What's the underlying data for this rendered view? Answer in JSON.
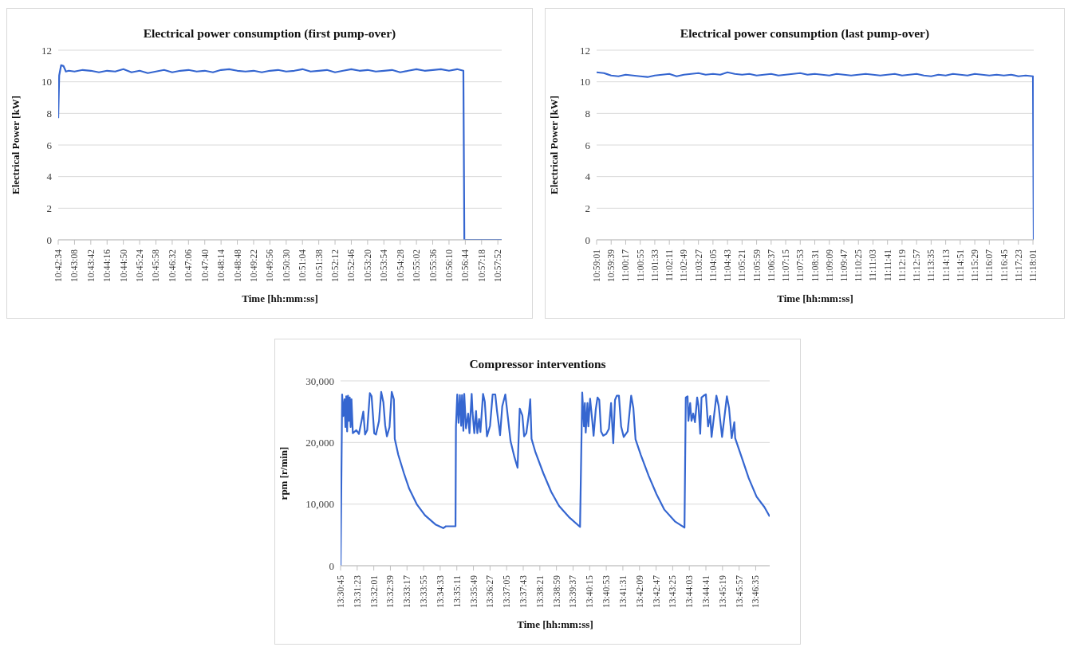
{
  "chart_data": [
    {
      "type": "line",
      "title": "Electrical power consumption (first pump-over)",
      "xlabel": "Time [hh:mm:ss]",
      "ylabel": "Electrical Power [kW]",
      "grid": "y",
      "ylim": [
        0,
        12
      ],
      "yticks": [
        0,
        2,
        4,
        6,
        8,
        10,
        12
      ],
      "xlim": [
        10.70944,
        10.96667
      ],
      "xticks": [
        {
          "value": 10.70944,
          "label": "10:42:34"
        },
        {
          "value": 10.71889,
          "label": "10:43:08"
        },
        {
          "value": 10.72833,
          "label": "10:43:42"
        },
        {
          "value": 10.73778,
          "label": "10:44:16"
        },
        {
          "value": 10.74722,
          "label": "10:44:50"
        },
        {
          "value": 10.75667,
          "label": "10:45:24"
        },
        {
          "value": 10.76611,
          "label": "10:45:58"
        },
        {
          "value": 10.77556,
          "label": "10:46:32"
        },
        {
          "value": 10.785,
          "label": "10:47:06"
        },
        {
          "value": 10.79444,
          "label": "10:47:40"
        },
        {
          "value": 10.80389,
          "label": "10:48:14"
        },
        {
          "value": 10.81333,
          "label": "10:48:48"
        },
        {
          "value": 10.82278,
          "label": "10:49:22"
        },
        {
          "value": 10.83222,
          "label": "10:49:56"
        },
        {
          "value": 10.84167,
          "label": "10:50:30"
        },
        {
          "value": 10.85111,
          "label": "10:51:04"
        },
        {
          "value": 10.86056,
          "label": "10:51:38"
        },
        {
          "value": 10.87,
          "label": "10:52:12"
        },
        {
          "value": 10.87944,
          "label": "10:52:46"
        },
        {
          "value": 10.88889,
          "label": "10:53:20"
        },
        {
          "value": 10.89833,
          "label": "10:53:54"
        },
        {
          "value": 10.90778,
          "label": "10:54:28"
        },
        {
          "value": 10.91722,
          "label": "10:55:02"
        },
        {
          "value": 10.92667,
          "label": "10:55:36"
        },
        {
          "value": 10.93611,
          "label": "10:56:10"
        },
        {
          "value": 10.94556,
          "label": "10:56:44"
        },
        {
          "value": 10.955,
          "label": "10:57:18"
        },
        {
          "value": 10.96444,
          "label": "10:57:52"
        }
      ],
      "x": [
        10.70944,
        10.71,
        10.71111,
        10.7125,
        10.71389,
        10.71556,
        10.71889,
        10.72361,
        10.72833,
        10.73306,
        10.73778,
        10.7425,
        10.74722,
        10.75194,
        10.75667,
        10.76139,
        10.76611,
        10.77083,
        10.77556,
        10.78028,
        10.785,
        10.78972,
        10.79444,
        10.79917,
        10.80389,
        10.80861,
        10.81333,
        10.81806,
        10.82278,
        10.8275,
        10.83222,
        10.83694,
        10.84167,
        10.84639,
        10.85111,
        10.85583,
        10.86056,
        10.86528,
        10.87,
        10.87472,
        10.87944,
        10.88417,
        10.88889,
        10.89361,
        10.89833,
        10.90306,
        10.90778,
        10.9125,
        10.91722,
        10.92194,
        10.92667,
        10.93139,
        10.93611,
        10.94083,
        10.94444,
        10.945,
        10.96667
      ],
      "series": [
        {
          "color": "#3566d0",
          "values": [
            7.7,
            10.4,
            11.05,
            11.0,
            10.65,
            10.7,
            10.65,
            10.75,
            10.7,
            10.6,
            10.7,
            10.65,
            10.8,
            10.6,
            10.7,
            10.55,
            10.65,
            10.75,
            10.6,
            10.7,
            10.75,
            10.65,
            10.7,
            10.6,
            10.75,
            10.8,
            10.7,
            10.65,
            10.7,
            10.6,
            10.7,
            10.75,
            10.65,
            10.7,
            10.8,
            10.65,
            10.7,
            10.75,
            10.6,
            10.7,
            10.8,
            10.7,
            10.75,
            10.65,
            10.7,
            10.75,
            10.6,
            10.7,
            10.8,
            10.7,
            10.75,
            10.8,
            10.7,
            10.8,
            10.7,
            0,
            0
          ]
        }
      ]
    },
    {
      "type": "line",
      "title": "Electrical power consumption (last pump-over)",
      "xlabel": "Time [hh:mm:ss]",
      "ylabel": "Electrical Power [kW]",
      "grid": "y",
      "ylim": [
        0,
        12
      ],
      "yticks": [
        0,
        2,
        4,
        6,
        8,
        10,
        12
      ],
      "xlim": [
        10.98361,
        11.30083
      ],
      "xticks": [
        {
          "value": 10.98361,
          "label": "10:59:01"
        },
        {
          "value": 10.99417,
          "label": "10:59:39"
        },
        {
          "value": 11.00472,
          "label": "11:00:17"
        },
        {
          "value": 11.01528,
          "label": "11:00:55"
        },
        {
          "value": 11.02583,
          "label": "11:01:33"
        },
        {
          "value": 11.03639,
          "label": "11:02:11"
        },
        {
          "value": 11.04694,
          "label": "11:02:49"
        },
        {
          "value": 11.0575,
          "label": "11:03:27"
        },
        {
          "value": 11.06806,
          "label": "11:04:05"
        },
        {
          "value": 11.07861,
          "label": "11:04:43"
        },
        {
          "value": 11.08917,
          "label": "11:05:21"
        },
        {
          "value": 11.09972,
          "label": "11:05:59"
        },
        {
          "value": 11.11028,
          "label": "11:06:37"
        },
        {
          "value": 11.12083,
          "label": "11:07:15"
        },
        {
          "value": 11.13139,
          "label": "11:07:53"
        },
        {
          "value": 11.14194,
          "label": "11:08:31"
        },
        {
          "value": 11.1525,
          "label": "11:09:09"
        },
        {
          "value": 11.16306,
          "label": "11:09:47"
        },
        {
          "value": 11.17361,
          "label": "11:10:25"
        },
        {
          "value": 11.18417,
          "label": "11:11:03"
        },
        {
          "value": 11.19472,
          "label": "11:11:41"
        },
        {
          "value": 11.20528,
          "label": "11:12:19"
        },
        {
          "value": 11.21583,
          "label": "11:12:57"
        },
        {
          "value": 11.22639,
          "label": "11:13:35"
        },
        {
          "value": 11.23694,
          "label": "11:14:13"
        },
        {
          "value": 11.2475,
          "label": "11:14:51"
        },
        {
          "value": 11.25806,
          "label": "11:15:29"
        },
        {
          "value": 11.26861,
          "label": "11:16:07"
        },
        {
          "value": 11.27917,
          "label": "11:16:45"
        },
        {
          "value": 11.28972,
          "label": "11:17:23"
        },
        {
          "value": 11.30028,
          "label": "11:18:01"
        }
      ],
      "x": [
        10.98361,
        10.98889,
        10.99417,
        10.99944,
        11.00472,
        11.01,
        11.01528,
        11.02056,
        11.02583,
        11.03111,
        11.03639,
        11.04167,
        11.04694,
        11.05222,
        11.0575,
        11.06278,
        11.06806,
        11.07333,
        11.07861,
        11.08389,
        11.08917,
        11.09444,
        11.09972,
        11.105,
        11.11028,
        11.11556,
        11.12083,
        11.12611,
        11.13139,
        11.13667,
        11.14194,
        11.14722,
        11.1525,
        11.15778,
        11.16306,
        11.16833,
        11.17361,
        11.17889,
        11.18417,
        11.18944,
        11.19472,
        11.2,
        11.20528,
        11.21056,
        11.21583,
        11.22111,
        11.22639,
        11.23167,
        11.23694,
        11.24222,
        11.2475,
        11.25278,
        11.25806,
        11.26333,
        11.26861,
        11.27389,
        11.27917,
        11.28444,
        11.28972,
        11.295,
        11.30028,
        11.30083
      ],
      "series": [
        {
          "color": "#3566d0",
          "values": [
            10.6,
            10.55,
            10.4,
            10.35,
            10.45,
            10.4,
            10.35,
            10.3,
            10.4,
            10.45,
            10.5,
            10.35,
            10.45,
            10.5,
            10.55,
            10.45,
            10.5,
            10.45,
            10.6,
            10.5,
            10.45,
            10.5,
            10.4,
            10.45,
            10.5,
            10.4,
            10.45,
            10.5,
            10.55,
            10.45,
            10.5,
            10.45,
            10.4,
            10.5,
            10.45,
            10.4,
            10.45,
            10.5,
            10.45,
            10.4,
            10.45,
            10.5,
            10.4,
            10.45,
            10.5,
            10.4,
            10.35,
            10.45,
            10.4,
            10.5,
            10.45,
            10.4,
            10.5,
            10.45,
            10.4,
            10.45,
            10.4,
            10.45,
            10.35,
            10.4,
            10.35,
            0
          ]
        }
      ]
    },
    {
      "type": "line",
      "title": "Compressor interventions",
      "xlabel": "Time [hh:mm:ss]",
      "ylabel": "rpm [r/min]",
      "grid": "y",
      "ylim": [
        0,
        30000
      ],
      "yticks": [
        0,
        {
          "value": 10000,
          "label": "10,000"
        },
        {
          "value": 20000,
          "label": "20,000"
        },
        {
          "value": 30000,
          "label": "30,000"
        }
      ],
      "xlim": [
        13.5125,
        13.78528
      ],
      "xticks": [
        {
          "value": 13.5125,
          "label": "13:30:45"
        },
        {
          "value": 13.52306,
          "label": "13:31:23"
        },
        {
          "value": 13.53361,
          "label": "13:32:01"
        },
        {
          "value": 13.54417,
          "label": "13:32:39"
        },
        {
          "value": 13.55472,
          "label": "13:33:17"
        },
        {
          "value": 13.56528,
          "label": "13:33:55"
        },
        {
          "value": 13.57583,
          "label": "13:34:33"
        },
        {
          "value": 13.58639,
          "label": "13:35:11"
        },
        {
          "value": 13.59694,
          "label": "13:35:49"
        },
        {
          "value": 13.6075,
          "label": "13:36:27"
        },
        {
          "value": 13.61806,
          "label": "13:37:05"
        },
        {
          "value": 13.62861,
          "label": "13:37:43"
        },
        {
          "value": 13.63917,
          "label": "13:38:21"
        },
        {
          "value": 13.64972,
          "label": "13:38:59"
        },
        {
          "value": 13.66028,
          "label": "13:39:37"
        },
        {
          "value": 13.67083,
          "label": "13:40:15"
        },
        {
          "value": 13.68139,
          "label": "13:40:53"
        },
        {
          "value": 13.69194,
          "label": "13:41:31"
        },
        {
          "value": 13.7025,
          "label": "13:42:09"
        },
        {
          "value": 13.71306,
          "label": "13:42:47"
        },
        {
          "value": 13.72361,
          "label": "13:43:25"
        },
        {
          "value": 13.73417,
          "label": "13:44:03"
        },
        {
          "value": 13.74472,
          "label": "13:44:41"
        },
        {
          "value": 13.75528,
          "label": "13:45:19"
        },
        {
          "value": 13.76583,
          "label": "13:45:57"
        },
        {
          "value": 13.77639,
          "label": "13:46:35"
        }
      ],
      "x": [
        13.5125,
        13.5135,
        13.51417,
        13.515,
        13.51556,
        13.51611,
        13.51667,
        13.51722,
        13.51778,
        13.51833,
        13.51889,
        13.51944,
        13.52028,
        13.5225,
        13.52417,
        13.52583,
        13.52694,
        13.52806,
        13.52944,
        13.53111,
        13.53222,
        13.53389,
        13.535,
        13.53694,
        13.53833,
        13.53972,
        13.54083,
        13.54194,
        13.54361,
        13.545,
        13.54639,
        13.54694,
        13.54917,
        13.55278,
        13.55611,
        13.56111,
        13.56611,
        13.57278,
        13.57778,
        13.57944,
        13.58556,
        13.58583,
        13.58667,
        13.5875,
        13.58833,
        13.58917,
        13.58972,
        13.59056,
        13.59111,
        13.59222,
        13.59361,
        13.59444,
        13.59583,
        13.59639,
        13.5975,
        13.59861,
        13.59944,
        13.60056,
        13.60139,
        13.60306,
        13.60417,
        13.60556,
        13.6075,
        13.60917,
        13.61083,
        13.61194,
        13.61389,
        13.61528,
        13.61722,
        13.61889,
        13.62056,
        13.62306,
        13.625,
        13.62639,
        13.62806,
        13.62917,
        13.63056,
        13.63222,
        13.63306,
        13.63389,
        13.63639,
        13.64139,
        13.64639,
        13.65139,
        13.65806,
        13.66472,
        13.66611,
        13.66722,
        13.66778,
        13.66833,
        13.66944,
        13.67,
        13.67111,
        13.6725,
        13.67333,
        13.67472,
        13.67583,
        13.67694,
        13.67806,
        13.67944,
        13.68139,
        13.68306,
        13.68444,
        13.68583,
        13.68694,
        13.68806,
        13.68944,
        13.69083,
        13.6925,
        13.695,
        13.69722,
        13.69861,
        13.7,
        13.70333,
        13.70833,
        13.71333,
        13.71833,
        13.725,
        13.73111,
        13.73194,
        13.73306,
        13.73361,
        13.73472,
        13.73556,
        13.73667,
        13.73778,
        13.73917,
        13.74,
        13.74111,
        13.74194,
        13.74333,
        13.74472,
        13.74611,
        13.7475,
        13.74833,
        13.75139,
        13.75278,
        13.755,
        13.75806,
        13.75944,
        13.76111,
        13.76278,
        13.76333,
        13.76694,
        13.77194,
        13.77694,
        13.78194,
        13.78528
      ],
      "series": [
        {
          "color": "#3566d0",
          "values": [
            0,
            27800,
            24300,
            27000,
            22500,
            27500,
            21800,
            27600,
            23500,
            27300,
            22500,
            27000,
            21500,
            22000,
            21400,
            23500,
            25000,
            21300,
            22000,
            28000,
            27500,
            21500,
            21300,
            23500,
            28200,
            26500,
            22800,
            21000,
            22500,
            28200,
            27000,
            20600,
            18000,
            15000,
            12500,
            9900,
            8200,
            6700,
            6100,
            6400,
            6400,
            22500,
            27800,
            23200,
            27700,
            22700,
            27700,
            21900,
            27900,
            22300,
            24700,
            21500,
            27900,
            24900,
            21500,
            25100,
            21500,
            23800,
            21700,
            27900,
            26600,
            21000,
            22700,
            27800,
            27800,
            25100,
            21200,
            25900,
            27800,
            24000,
            20200,
            17600,
            15900,
            25500,
            24400,
            21000,
            21500,
            24700,
            27000,
            20600,
            18400,
            15000,
            12000,
            9700,
            7800,
            6300,
            28100,
            22600,
            26400,
            21600,
            26400,
            22600,
            27100,
            23500,
            21100,
            25400,
            27300,
            26900,
            21800,
            21100,
            21400,
            22200,
            26400,
            19900,
            26900,
            27600,
            27600,
            22600,
            20900,
            21800,
            27600,
            25600,
            20500,
            18000,
            14600,
            11600,
            9100,
            7200,
            6200,
            27300,
            27500,
            23500,
            26400,
            23500,
            24700,
            23300,
            27300,
            26000,
            21400,
            27300,
            27600,
            27800,
            22600,
            24300,
            20900,
            27600,
            26000,
            20900,
            27500,
            25600,
            20700,
            23300,
            20700,
            18000,
            14200,
            11200,
            9500,
            8000
          ]
        }
      ]
    }
  ]
}
